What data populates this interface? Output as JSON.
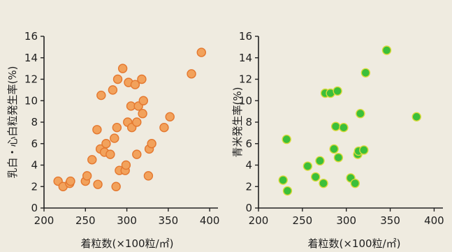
{
  "chart_data": [
    {
      "type": "scatter",
      "title": "",
      "xlabel": "着粒数(×100粒/㎡)",
      "ylabel": "乳白・心白粒発生率(%)",
      "xlim": [
        200,
        410
      ],
      "ylim": [
        0,
        16
      ],
      "xticks": [
        "200",
        "250",
        "300",
        "350",
        "400"
      ],
      "yticks": [
        "0",
        "2",
        "4",
        "6",
        "8",
        "10",
        "12",
        "14",
        "16"
      ],
      "grid": false,
      "marker_color": "#f2a25c",
      "marker_edge": "#e4782f",
      "points": [
        [
          217,
          2.5
        ],
        [
          223,
          2.0
        ],
        [
          231,
          2.3
        ],
        [
          232,
          2.5
        ],
        [
          250,
          2.5
        ],
        [
          252,
          3.0
        ],
        [
          258,
          4.5
        ],
        [
          264,
          7.3
        ],
        [
          265,
          2.2
        ],
        [
          268,
          5.5
        ],
        [
          269,
          10.5
        ],
        [
          273,
          5.2
        ],
        [
          275,
          6.0
        ],
        [
          280,
          5.0
        ],
        [
          283,
          11.0
        ],
        [
          285,
          6.5
        ],
        [
          287,
          2.0
        ],
        [
          288,
          7.5
        ],
        [
          289,
          12.0
        ],
        [
          291,
          3.5
        ],
        [
          295,
          13.0
        ],
        [
          298,
          3.5
        ],
        [
          299,
          4.0
        ],
        [
          301,
          8.0
        ],
        [
          302,
          11.7
        ],
        [
          305,
          9.5
        ],
        [
          306,
          7.5
        ],
        [
          310,
          11.5
        ],
        [
          312,
          5.0
        ],
        [
          312,
          8.0
        ],
        [
          314,
          9.5
        ],
        [
          318,
          12.0
        ],
        [
          319,
          8.8
        ],
        [
          320,
          10.0
        ],
        [
          326,
          3.0
        ],
        [
          327,
          5.5
        ],
        [
          330,
          6.0
        ],
        [
          345,
          7.5
        ],
        [
          352,
          8.5
        ],
        [
          378,
          12.5
        ],
        [
          390,
          14.5
        ]
      ]
    },
    {
      "type": "scatter",
      "title": "",
      "xlabel": "着粒数(×100粒/㎡)",
      "ylabel": "青米発生率(%)",
      "xlim": [
        200,
        410
      ],
      "ylim": [
        0,
        16
      ],
      "xticks": [
        "200",
        "250",
        "300",
        "350",
        "400"
      ],
      "yticks": [
        "0",
        "2",
        "4",
        "6",
        "8",
        "10",
        "12",
        "14",
        "16"
      ],
      "grid": false,
      "marker_color": "#3bbf3a",
      "marker_edge": "#d9d93a",
      "points": [
        [
          228,
          2.6
        ],
        [
          232,
          6.4
        ],
        [
          233,
          1.6
        ],
        [
          256,
          3.9
        ],
        [
          265,
          2.9
        ],
        [
          270,
          4.4
        ],
        [
          274,
          2.3
        ],
        [
          276,
          10.7
        ],
        [
          282,
          10.7
        ],
        [
          286,
          5.5
        ],
        [
          288,
          7.6
        ],
        [
          290,
          10.9
        ],
        [
          291,
          4.7
        ],
        [
          297,
          7.5
        ],
        [
          305,
          2.8
        ],
        [
          310,
          2.3
        ],
        [
          313,
          5.0
        ],
        [
          314,
          5.3
        ],
        [
          316,
          8.8
        ],
        [
          320,
          5.4
        ],
        [
          322,
          12.6
        ],
        [
          346,
          14.7
        ],
        [
          380,
          8.5
        ]
      ]
    }
  ]
}
